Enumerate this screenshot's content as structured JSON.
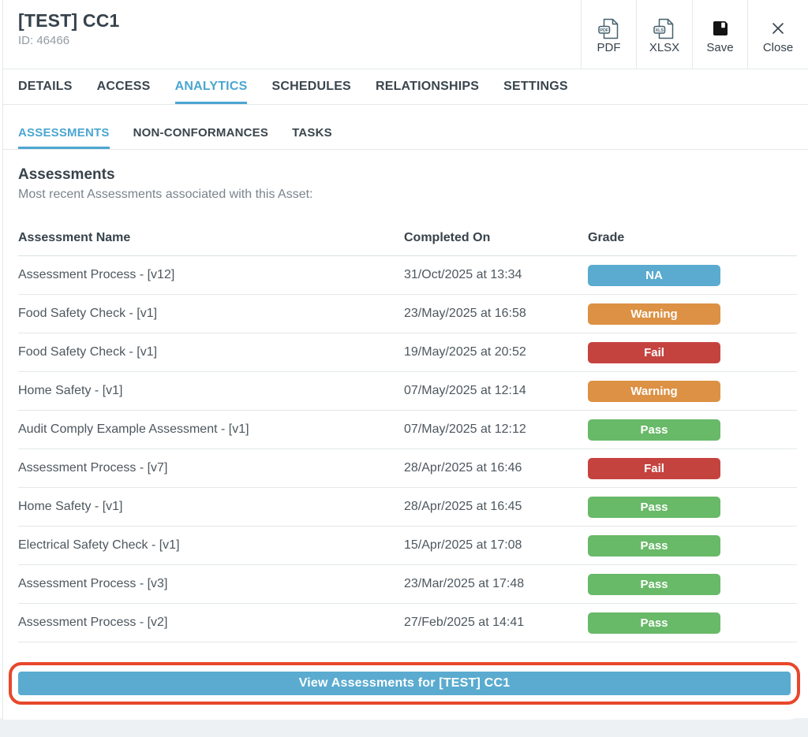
{
  "header": {
    "title": "[TEST] CC1",
    "asset_id": "ID: 46466",
    "actions": [
      {
        "label": "PDF",
        "icon": "pdf-file-icon",
        "icon_badge": "PDF"
      },
      {
        "label": "XLSX",
        "icon": "xlsx-file-icon",
        "icon_badge": "XLS"
      },
      {
        "label": "Save",
        "icon": "save-floppy-icon",
        "icon_badge": ""
      },
      {
        "label": "Close",
        "icon": "close-x-icon",
        "icon_badge": ""
      }
    ]
  },
  "tabs": {
    "items": [
      "DETAILS",
      "ACCESS",
      "ANALYTICS",
      "SCHEDULES",
      "RELATIONSHIPS",
      "SETTINGS"
    ],
    "active": "ANALYTICS"
  },
  "subtabs": {
    "items": [
      "ASSESSMENTS",
      "NON-CONFORMANCES",
      "TASKS"
    ],
    "active": "ASSESSMENTS"
  },
  "section": {
    "title": "Assessments",
    "subtitle": "Most recent Assessments associated with this Asset:"
  },
  "table": {
    "columns": [
      "Assessment Name",
      "Completed On",
      "Grade"
    ],
    "rows": [
      {
        "name": "Assessment Process - [v12]",
        "completed_on": "31/Oct/2025 at 13:34",
        "grade": "NA"
      },
      {
        "name": "Food Safety Check - [v1]",
        "completed_on": "23/May/2025 at 16:58",
        "grade": "Warning"
      },
      {
        "name": "Food Safety Check - [v1]",
        "completed_on": "19/May/2025 at 20:52",
        "grade": "Fail"
      },
      {
        "name": "Home Safety - [v1]",
        "completed_on": "07/May/2025 at 12:14",
        "grade": "Warning"
      },
      {
        "name": "Audit Comply Example Assessment - [v1]",
        "completed_on": "07/May/2025 at 12:12",
        "grade": "Pass"
      },
      {
        "name": "Assessment Process - [v7]",
        "completed_on": "28/Apr/2025 at 16:46",
        "grade": "Fail"
      },
      {
        "name": "Home Safety - [v1]",
        "completed_on": "28/Apr/2025 at 16:45",
        "grade": "Pass"
      },
      {
        "name": "Electrical Safety Check - [v1]",
        "completed_on": "15/Apr/2025 at 17:08",
        "grade": "Pass"
      },
      {
        "name": "Assessment Process - [v3]",
        "completed_on": "23/Mar/2025 at 17:48",
        "grade": "Pass"
      },
      {
        "name": "Assessment Process - [v2]",
        "completed_on": "27/Feb/2025 at 14:41",
        "grade": "Pass"
      }
    ]
  },
  "grade_colors": {
    "NA": "#5aabcf",
    "Warning": "#dc9144",
    "Fail": "#c5433f",
    "Pass": "#68b968"
  },
  "footer": {
    "view_button_label": "View Assessments for [TEST] CC1",
    "annotation_color": "#e8472b"
  },
  "accent_color": "#4ba6d1"
}
